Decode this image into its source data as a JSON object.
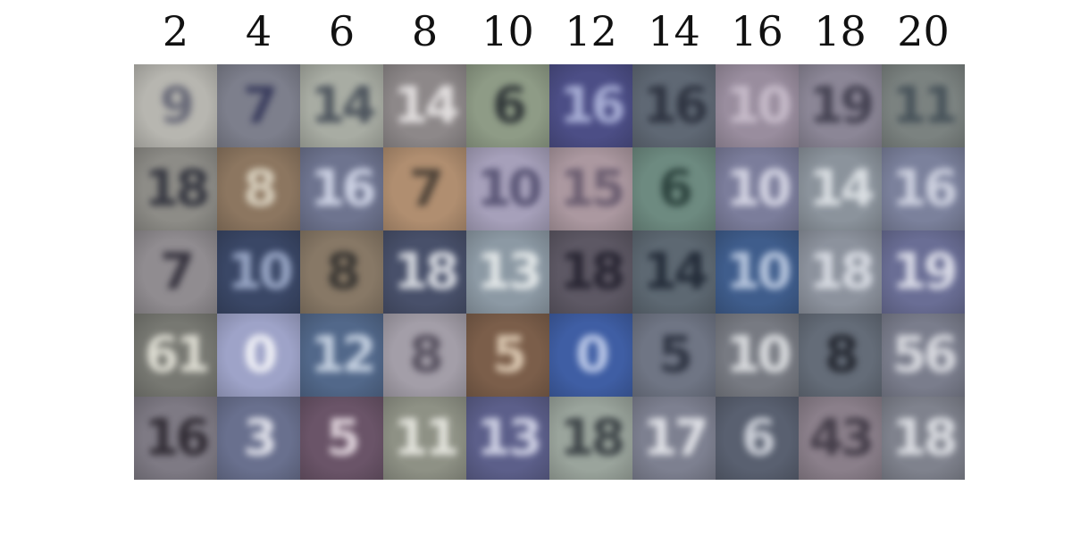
{
  "column_labels": [
    "2",
    "4",
    "6",
    "8",
    "10",
    "12",
    "14",
    "16",
    "18",
    "20"
  ],
  "tiles": [
    [
      {
        "bg": "#b7b6b0",
        "fg": "#5a5c6e",
        "glyph": "9"
      },
      {
        "bg": "#7d7f8c",
        "fg": "#2f3256",
        "glyph": "7"
      },
      {
        "bg": "#a8aca3",
        "fg": "#3e4652",
        "glyph": "14"
      },
      {
        "bg": "#8d8889",
        "fg": "#f1eeee",
        "glyph": "14"
      },
      {
        "bg": "#8e9b86",
        "fg": "#21262c",
        "glyph": "6"
      },
      {
        "bg": "#4c4e86",
        "fg": "#b9c0e4",
        "glyph": "16"
      },
      {
        "bg": "#5f6874",
        "fg": "#262b38",
        "glyph": "16"
      },
      {
        "bg": "#998d9e",
        "fg": "#cfc4d2",
        "glyph": "10"
      },
      {
        "bg": "#8b8696",
        "fg": "#383646",
        "glyph": "19"
      },
      {
        "bg": "#7b8280",
        "fg": "#3e4a53",
        "glyph": "11"
      }
    ],
    [
      {
        "bg": "#8d8c87",
        "fg": "#272935",
        "glyph": "18"
      },
      {
        "bg": "#8c7660",
        "fg": "#e5dfce",
        "glyph": "8"
      },
      {
        "bg": "#6e748f",
        "fg": "#dfe4f4",
        "glyph": "16"
      },
      {
        "bg": "#b08e70",
        "fg": "#3d362f",
        "glyph": "7"
      },
      {
        "bg": "#a6a0ba",
        "fg": "#4c4869",
        "glyph": "10"
      },
      {
        "bg": "#ab98a0",
        "fg": "#5f5368",
        "glyph": "15"
      },
      {
        "bg": "#6d8a80",
        "fg": "#233834",
        "glyph": "6"
      },
      {
        "bg": "#7b7d9b",
        "fg": "#e4e4f0",
        "glyph": "10"
      },
      {
        "bg": "#8b939c",
        "fg": "#e9edf0",
        "glyph": "14"
      },
      {
        "bg": "#7b819c",
        "fg": "#dde0ec",
        "glyph": "16"
      }
    ],
    [
      {
        "bg": "#908c90",
        "fg": "#262330",
        "glyph": "7"
      },
      {
        "bg": "#3a4766",
        "fg": "#a9b7d6",
        "glyph": "10"
      },
      {
        "bg": "#877866",
        "fg": "#2d2c2b",
        "glyph": "8"
      },
      {
        "bg": "#48506a",
        "fg": "#eef0f3",
        "glyph": "18"
      },
      {
        "bg": "#8c99a4",
        "fg": "#f2f5f4",
        "glyph": "13"
      },
      {
        "bg": "#5d5864",
        "fg": "#1f1d2a",
        "glyph": "18"
      },
      {
        "bg": "#5d6872",
        "fg": "#1b2330",
        "glyph": "14"
      },
      {
        "bg": "#3f5d8c",
        "fg": "#ccd8ec",
        "glyph": "10"
      },
      {
        "bg": "#8c929d",
        "fg": "#e5e8ef",
        "glyph": "18"
      },
      {
        "bg": "#6a6e95",
        "fg": "#eeeff6",
        "glyph": "19"
      }
    ],
    [
      {
        "bg": "#777872",
        "fg": "#f0efe4",
        "glyph": "61"
      },
      {
        "bg": "#9ea3c8",
        "fg": "#ffffff",
        "glyph": "0"
      },
      {
        "bg": "#52688a",
        "fg": "#d8e2ef",
        "glyph": "12"
      },
      {
        "bg": "#a39ea8",
        "fg": "#4b4554",
        "glyph": "8"
      },
      {
        "bg": "#7b5e4a",
        "fg": "#ecdbc4",
        "glyph": "5"
      },
      {
        "bg": "#3f5ea4",
        "fg": "#d2dcf4",
        "glyph": "0"
      },
      {
        "bg": "#6f7584",
        "fg": "#242a38",
        "glyph": "5"
      },
      {
        "bg": "#777a82",
        "fg": "#eceef0",
        "glyph": "10"
      },
      {
        "bg": "#646c78",
        "fg": "#1d2028",
        "glyph": "8"
      },
      {
        "bg": "#7a7d8c",
        "fg": "#e9eaee",
        "glyph": "56"
      }
    ],
    [
      {
        "bg": "#7e7a84",
        "fg": "#252028",
        "glyph": "16"
      },
      {
        "bg": "#69708e",
        "fg": "#f6f6fb",
        "glyph": "3"
      },
      {
        "bg": "#6a5468",
        "fg": "#f2e8ee",
        "glyph": "5"
      },
      {
        "bg": "#8e9185",
        "fg": "#f4f4ee",
        "glyph": "11"
      },
      {
        "bg": "#5c5f8a",
        "fg": "#e3e5f4",
        "glyph": "13"
      },
      {
        "bg": "#9aa49c",
        "fg": "#2c3238",
        "glyph": "18"
      },
      {
        "bg": "#7d8090",
        "fg": "#f4f5f8",
        "glyph": "17"
      },
      {
        "bg": "#596070",
        "fg": "#e0e3ea",
        "glyph": "6"
      },
      {
        "bg": "#8a7f8a",
        "fg": "#3a3440",
        "glyph": "43"
      },
      {
        "bg": "#7f828d",
        "fg": "#eceef2",
        "glyph": "18"
      }
    ]
  ]
}
